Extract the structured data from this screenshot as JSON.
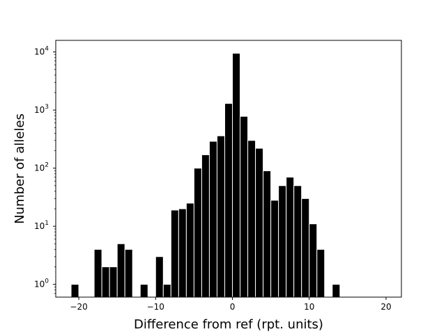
{
  "chart_data": {
    "type": "bar",
    "title": "",
    "xlabel": "Difference from ref (rpt. units)",
    "ylabel": "Number of alleles",
    "yscale": "log",
    "xlim": [
      -23,
      22
    ],
    "ylim_log10": [
      -0.22,
      4.2
    ],
    "grid": false,
    "bar_color": "#000000",
    "edge_color": "#ffffff",
    "x_ticks": [
      -20,
      -10,
      0,
      10,
      20
    ],
    "x_tick_labels": [
      "−20",
      "−10",
      "0",
      "10",
      "20"
    ],
    "y_ticks": [
      {
        "base": "10",
        "exp": "0",
        "value": 1
      },
      {
        "base": "10",
        "exp": "1",
        "value": 10
      },
      {
        "base": "10",
        "exp": "2",
        "value": 100
      },
      {
        "base": "10",
        "exp": "3",
        "value": 1000
      },
      {
        "base": "10",
        "exp": "4",
        "value": 10000
      }
    ],
    "bars": [
      {
        "x": -20.5,
        "value": 1
      },
      {
        "x": -17.5,
        "value": 4
      },
      {
        "x": -16.5,
        "value": 2
      },
      {
        "x": -15.5,
        "value": 2
      },
      {
        "x": -14.5,
        "value": 5
      },
      {
        "x": -13.5,
        "value": 4
      },
      {
        "x": -11.5,
        "value": 1
      },
      {
        "x": -9.5,
        "value": 3
      },
      {
        "x": -8.5,
        "value": 1
      },
      {
        "x": -7.5,
        "value": 19
      },
      {
        "x": -6.5,
        "value": 20
      },
      {
        "x": -5.5,
        "value": 25
      },
      {
        "x": -4.5,
        "value": 100
      },
      {
        "x": -3.5,
        "value": 170
      },
      {
        "x": -2.5,
        "value": 290
      },
      {
        "x": -1.5,
        "value": 360
      },
      {
        "x": -0.5,
        "value": 1300
      },
      {
        "x": 0.5,
        "value": 9500
      },
      {
        "x": 1.5,
        "value": 780
      },
      {
        "x": 2.5,
        "value": 300
      },
      {
        "x": 3.5,
        "value": 220
      },
      {
        "x": 4.5,
        "value": 90
      },
      {
        "x": 5.5,
        "value": 28
      },
      {
        "x": 6.5,
        "value": 50
      },
      {
        "x": 7.5,
        "value": 70
      },
      {
        "x": 8.5,
        "value": 50
      },
      {
        "x": 9.5,
        "value": 30
      },
      {
        "x": 10.5,
        "value": 11
      },
      {
        "x": 11.5,
        "value": 4
      },
      {
        "x": 13.5,
        "value": 1
      }
    ]
  }
}
